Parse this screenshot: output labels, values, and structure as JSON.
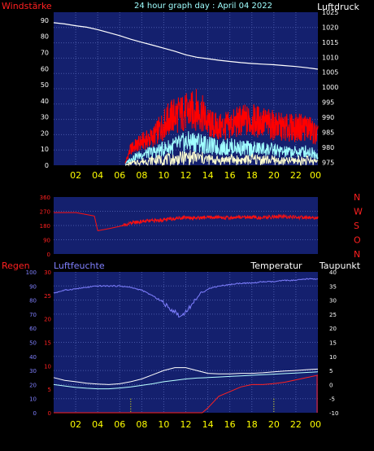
{
  "header": {
    "left_label": "Windstärke",
    "title": "24 hour graph day : April 04 2022",
    "right_label": "Luftdruck"
  },
  "colors": {
    "panel_bg": "#14206e",
    "grid": "#4858a8",
    "tick_red": "#ff2020",
    "tick_blue": "#8080ff",
    "tick_white": "#ffffff",
    "tick_yellow": "#ffff00",
    "gust": "#ff0000",
    "wind": "#a0ffff",
    "wind_fill": "#ffffd0",
    "pressure": "#ffffff",
    "direction": "#ff1010",
    "humidity": "#7f7fff",
    "temperature": "#ffffff",
    "dewpoint": "#b8ffff",
    "rain": "#ff2020",
    "marker": "#ffff00",
    "title": "#a0ffff"
  },
  "time_ticks": [
    "02",
    "04",
    "06",
    "08",
    "10",
    "12",
    "14",
    "16",
    "18",
    "20",
    "22",
    "00"
  ],
  "chart_data": [
    {
      "type": "line",
      "name": "wind-pressure",
      "x_range": [
        0,
        24
      ],
      "left_axis": {
        "ticks": [
          "0",
          "10",
          "20",
          "30",
          "40",
          "50",
          "60",
          "70",
          "80",
          "90"
        ],
        "ylim": [
          0,
          95
        ]
      },
      "right_axis": {
        "ticks": [
          "975",
          "980",
          "985",
          "990",
          "995",
          "1000",
          "1005",
          "1010",
          "1015",
          "1020",
          "1025"
        ],
        "ylim": [
          974,
          1025
        ]
      },
      "pressure": {
        "x": [
          0,
          1,
          2,
          3,
          4,
          5,
          6,
          7,
          8,
          9,
          10,
          11,
          12,
          13,
          14,
          15,
          16,
          17,
          18,
          19,
          20,
          21,
          22,
          23,
          24
        ],
        "y": [
          1021.5,
          1021.1,
          1020.5,
          1020.0,
          1019.2,
          1018.2,
          1017.2,
          1016.0,
          1015.0,
          1014.0,
          1013.0,
          1012.0,
          1010.8,
          1010.0,
          1009.5,
          1009.0,
          1008.6,
          1008.2,
          1007.9,
          1007.7,
          1007.5,
          1007.2,
          1006.9,
          1006.5,
          1006.0
        ]
      },
      "gust_envelope": {
        "x": [
          6.5,
          7,
          8,
          9,
          10,
          10.5,
          11,
          11.5,
          12,
          12.5,
          13,
          13.5,
          14,
          15,
          16,
          17,
          18,
          19,
          20,
          21,
          22,
          23,
          24
        ],
        "y": [
          2,
          14,
          20,
          24,
          35,
          40,
          43,
          44,
          45,
          46,
          48,
          44,
          36,
          32,
          34,
          38,
          38,
          37,
          34,
          32,
          32,
          33,
          25
        ]
      },
      "wind_envelope": {
        "x": [
          6.5,
          7,
          8,
          9,
          10,
          11,
          12,
          13,
          14,
          15,
          16,
          17,
          18,
          19,
          20,
          21,
          22,
          23,
          24
        ],
        "y": [
          1,
          6,
          10,
          12,
          15,
          18,
          21,
          22,
          18,
          16,
          17,
          16,
          15,
          15,
          14,
          12,
          12,
          13,
          10
        ]
      },
      "wind_min": {
        "x": [
          6.5,
          7,
          8,
          9,
          10,
          11,
          12,
          13,
          14,
          15,
          16,
          17,
          18,
          19,
          20,
          21,
          22,
          23,
          24
        ],
        "y": [
          0,
          2,
          4,
          5,
          6,
          6,
          8,
          8,
          6,
          5,
          6,
          5,
          6,
          6,
          5,
          4,
          5,
          5,
          4
        ]
      }
    },
    {
      "type": "line",
      "name": "wind-direction",
      "x_range": [
        0,
        24
      ],
      "left_axis": {
        "ticks": [
          "0",
          "90",
          "180",
          "270",
          "360"
        ],
        "ylim": [
          0,
          360
        ]
      },
      "compass": [
        "N",
        "W",
        "S",
        "O",
        "N"
      ],
      "direction": {
        "x": [
          0,
          2,
          3.7,
          4,
          5,
          6,
          6.5,
          7,
          8,
          9,
          10,
          11,
          12,
          13,
          14,
          15,
          16,
          17,
          18,
          19,
          20,
          21,
          22,
          23,
          24
        ],
        "y": [
          262,
          262,
          240,
          147,
          160,
          175,
          185,
          195,
          205,
          210,
          215,
          225,
          232,
          228,
          230,
          232,
          228,
          235,
          232,
          228,
          235,
          236,
          232,
          230,
          228
        ]
      }
    },
    {
      "type": "line",
      "name": "humidity-temperature-rain",
      "x_range": [
        0,
        24
      ],
      "left_axis": {
        "ticks": [
          "0",
          "10",
          "20",
          "30",
          "40",
          "50",
          "60",
          "70",
          "80",
          "90",
          "100"
        ],
        "ylim": [
          0,
          100
        ]
      },
      "rain_axis": {
        "ticks": [
          "0",
          "5",
          "10",
          "15",
          "20",
          "25",
          "30"
        ],
        "ylim": [
          0,
          30
        ]
      },
      "right_axis": {
        "ticks": [
          "-10",
          "-5",
          "0",
          "5",
          "10",
          "15",
          "20",
          "25",
          "30",
          "35",
          "40"
        ],
        "ylim": [
          -10,
          40
        ]
      },
      "labels": {
        "left": "Regen",
        "humidity": "Luftfeuchte",
        "temperature": "Temperatur",
        "dewpoint": "Taupunkt"
      },
      "humidity": {
        "x": [
          0,
          1,
          2,
          3,
          4,
          5,
          6,
          7,
          8,
          9,
          10,
          10.5,
          11,
          11.5,
          12,
          12.5,
          13,
          14,
          15,
          16,
          17,
          18,
          19,
          20,
          21,
          22,
          23,
          24
        ],
        "y": [
          85,
          87,
          88,
          89,
          90,
          90,
          90,
          89,
          87,
          83,
          78,
          74,
          72,
          68,
          72,
          76,
          82,
          88,
          90,
          91,
          92,
          92,
          93,
          93,
          94,
          94,
          95,
          95
        ]
      },
      "temperature": {
        "x": [
          0,
          1,
          2,
          3,
          4,
          5,
          6,
          7,
          8,
          9,
          10,
          11,
          12,
          13,
          14,
          15,
          16,
          17,
          18,
          19,
          20,
          21,
          22,
          23,
          24
        ],
        "y": [
          2.5,
          1.5,
          1.0,
          0.5,
          0.2,
          0.0,
          0.3,
          1.0,
          2.0,
          3.5,
          5.0,
          6.0,
          6.0,
          5.0,
          4.0,
          3.8,
          3.8,
          4.0,
          4.0,
          4.2,
          4.5,
          4.8,
          5.0,
          5.3,
          5.5
        ]
      },
      "dewpoint": {
        "x": [
          0,
          1,
          2,
          3,
          4,
          5,
          6,
          7,
          8,
          9,
          10,
          11,
          12,
          13,
          14,
          15,
          16,
          17,
          18,
          19,
          20,
          21,
          22,
          23,
          24
        ],
        "y": [
          0.0,
          -0.5,
          -1.0,
          -1.3,
          -1.5,
          -1.5,
          -1.2,
          -0.8,
          -0.3,
          0.3,
          1.0,
          1.5,
          2.0,
          2.3,
          2.5,
          2.7,
          2.9,
          3.1,
          3.3,
          3.5,
          3.7,
          3.9,
          4.1,
          4.3,
          4.5
        ]
      },
      "rain": {
        "x": [
          0,
          13.5,
          14,
          15,
          16,
          17,
          18,
          19,
          20,
          21,
          22,
          23,
          24
        ],
        "y": [
          0,
          0,
          1,
          3.5,
          4.5,
          5.5,
          6,
          6,
          6.2,
          6.5,
          7,
          7.5,
          8
        ]
      },
      "markers_x": [
        7,
        20
      ]
    }
  ]
}
